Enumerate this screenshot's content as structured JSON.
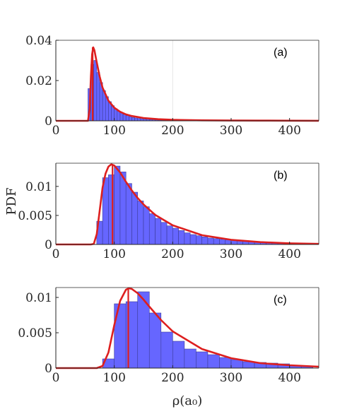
{
  "ylabel": "PDF",
  "xlabel": "ρ(a₀)",
  "colors": {
    "bar": "#6666ff",
    "bar_edge": "#3d3d99",
    "fit": "#dd1f1f",
    "axis": "#262626",
    "grid": "#e6e6e6"
  },
  "chart_data": [
    {
      "type": "bar",
      "label": "(a)",
      "xlim": [
        0,
        450
      ],
      "ylim": [
        0,
        0.04
      ],
      "xticks": [
        0,
        100,
        200,
        300,
        400
      ],
      "yticks": [
        0,
        0.02,
        0.04
      ],
      "ytick_labels": [
        "0",
        "0.02",
        "0.04"
      ],
      "grid_x": [
        200
      ],
      "bin_width": 5,
      "bins_x": [
        55,
        60,
        65,
        70,
        75,
        80,
        85,
        90,
        95,
        100,
        105,
        110,
        115,
        120,
        125,
        130,
        135,
        140,
        145,
        150,
        155,
        160,
        165,
        170,
        175,
        180,
        185,
        190,
        195,
        200
      ],
      "bins_y": [
        0.016,
        0.028,
        0.03,
        0.024,
        0.019,
        0.015,
        0.012,
        0.0095,
        0.0075,
        0.006,
        0.0048,
        0.004,
        0.0032,
        0.0026,
        0.0021,
        0.0017,
        0.0014,
        0.0012,
        0.001,
        0.0008,
        0.0007,
        0.0006,
        0.0005,
        0.0004,
        0.00035,
        0.0003,
        0.00025,
        0.0002,
        0.00017,
        0.00015
      ],
      "fit_x": [
        0,
        55,
        58,
        60,
        62,
        64,
        66,
        70,
        75,
        80,
        90,
        100,
        110,
        120,
        130,
        150,
        175,
        200,
        250,
        300,
        350,
        400,
        450
      ],
      "fit_y": [
        0,
        0,
        0.006,
        0.022,
        0.033,
        0.0365,
        0.035,
        0.029,
        0.022,
        0.0165,
        0.01,
        0.0065,
        0.0045,
        0.0032,
        0.0024,
        0.0014,
        0.0008,
        0.0005,
        0.00025,
        0.00015,
        0.0001,
        6e-05,
        4e-05
      ],
      "mode_x": 63
    },
    {
      "type": "bar",
      "label": "(b)",
      "xlim": [
        0,
        450
      ],
      "ylim": [
        0,
        0.014
      ],
      "xticks": [
        0,
        100,
        200,
        300,
        400
      ],
      "yticks": [
        0,
        0.005,
        0.01
      ],
      "ytick_labels": [
        "0",
        "0.005",
        "0.01"
      ],
      "grid_x": [],
      "bin_width": 10,
      "bins_x": [
        70,
        80,
        90,
        100,
        110,
        120,
        130,
        140,
        150,
        160,
        170,
        180,
        190,
        200,
        210,
        220,
        230,
        240,
        250,
        260,
        270,
        280,
        290,
        300,
        310,
        320,
        330,
        340,
        350,
        360,
        370,
        380,
        390,
        400
      ],
      "bins_y": [
        0.004,
        0.0115,
        0.012,
        0.0135,
        0.0125,
        0.0105,
        0.009,
        0.0075,
        0.0065,
        0.0053,
        0.0045,
        0.0038,
        0.0032,
        0.0028,
        0.0024,
        0.002,
        0.0017,
        0.0015,
        0.0013,
        0.0011,
        0.001,
        0.0009,
        0.0008,
        0.0007,
        0.0006,
        0.00055,
        0.0005,
        0.00045,
        0.0004,
        0.00035,
        0.0003,
        0.00027,
        0.00025,
        0.00022
      ],
      "fit_x": [
        0,
        60,
        65,
        70,
        75,
        80,
        85,
        90,
        95,
        100,
        110,
        120,
        130,
        140,
        150,
        170,
        200,
        250,
        300,
        350,
        400,
        450
      ],
      "fit_y": [
        0,
        0,
        0.0001,
        0.0018,
        0.0058,
        0.0098,
        0.0122,
        0.0134,
        0.0138,
        0.0136,
        0.0124,
        0.0108,
        0.0093,
        0.008,
        0.0069,
        0.0051,
        0.0033,
        0.0016,
        0.0008,
        0.0004,
        0.0002,
        0.0001
      ],
      "mode_x": 97
    },
    {
      "type": "bar",
      "label": "(c)",
      "xlim": [
        0,
        450
      ],
      "ylim": [
        0,
        0.0114
      ],
      "xticks": [
        0,
        100,
        200,
        300,
        400
      ],
      "yticks": [
        0,
        0.005,
        0.01
      ],
      "ytick_labels": [
        "0",
        "0.005",
        "0.01"
      ],
      "grid_x": [],
      "bin_width": 20,
      "bins_x": [
        80,
        100,
        120,
        140,
        160,
        180,
        200,
        220,
        240,
        260,
        280,
        300,
        320,
        340,
        360,
        380,
        400,
        420
      ],
      "bins_y": [
        0.0013,
        0.0091,
        0.0094,
        0.0108,
        0.0078,
        0.0051,
        0.0038,
        0.0027,
        0.0023,
        0.0019,
        0.0015,
        0.0012,
        0.0009,
        0.0008,
        0.0007,
        0.0006,
        0.0004,
        0.0003
      ],
      "fit_x": [
        0,
        70,
        80,
        90,
        100,
        110,
        120,
        125,
        130,
        140,
        150,
        160,
        180,
        200,
        250,
        300,
        350,
        400,
        450
      ],
      "fit_y": [
        0,
        0,
        0.0003,
        0.0022,
        0.0061,
        0.0095,
        0.0111,
        0.0113,
        0.0112,
        0.0106,
        0.0097,
        0.0087,
        0.0068,
        0.0052,
        0.0027,
        0.0014,
        0.0007,
        0.0004,
        0.0002
      ],
      "mode_x": 124
    }
  ]
}
